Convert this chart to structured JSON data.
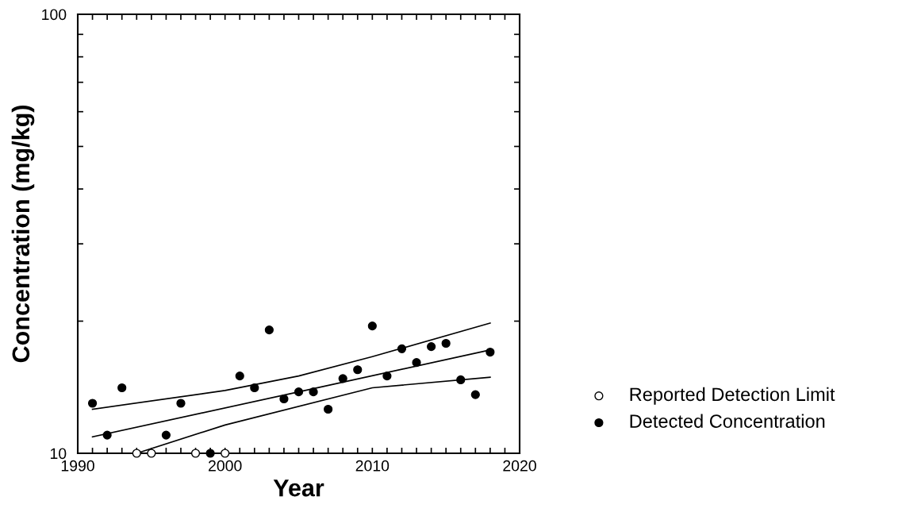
{
  "chart_data": {
    "type": "scatter",
    "xlabel": "Year",
    "ylabel": "Concentration (mg/kg)",
    "log": "y",
    "grid": false,
    "legend": "right",
    "xlim": [
      1990,
      2020
    ],
    "ylim": [
      10,
      100
    ],
    "xticks": [
      1990,
      {
        "value": 1991,
        "label": null
      },
      {
        "value": 1992,
        "label": null
      },
      {
        "value": 1993,
        "label": null
      },
      {
        "value": 1994,
        "label": null
      },
      {
        "value": 1995,
        "label": null
      },
      {
        "value": 1996,
        "label": null
      },
      {
        "value": 1997,
        "label": null
      },
      {
        "value": 1998,
        "label": null
      },
      {
        "value": 1999,
        "label": null
      },
      2000,
      {
        "value": 2001,
        "label": null
      },
      {
        "value": 2002,
        "label": null
      },
      {
        "value": 2003,
        "label": null
      },
      {
        "value": 2004,
        "label": null
      },
      {
        "value": 2005,
        "label": null
      },
      {
        "value": 2006,
        "label": null
      },
      {
        "value": 2007,
        "label": null
      },
      {
        "value": 2008,
        "label": null
      },
      {
        "value": 2009,
        "label": null
      },
      2010,
      {
        "value": 2011,
        "label": null
      },
      {
        "value": 2012,
        "label": null
      },
      {
        "value": 2013,
        "label": null
      },
      {
        "value": 2014,
        "label": null
      },
      {
        "value": 2015,
        "label": null
      },
      {
        "value": 2016,
        "label": null
      },
      {
        "value": 2017,
        "label": null
      },
      {
        "value": 2018,
        "label": null
      },
      {
        "value": 2019,
        "label": null
      },
      2020
    ],
    "yticks": [
      10,
      {
        "value": 20,
        "label": null
      },
      {
        "value": 30,
        "label": null
      },
      {
        "value": 40,
        "label": null
      },
      {
        "value": 50,
        "label": null
      },
      {
        "value": 60,
        "label": null
      },
      {
        "value": 70,
        "label": null
      },
      {
        "value": 80,
        "label": null
      },
      {
        "value": 90,
        "label": null
      },
      100
    ],
    "series": [
      {
        "name": "Reported Detection Limit",
        "marker": "circle",
        "color": "#ffffff",
        "x": [
          1994,
          1995,
          1998,
          2000
        ],
        "values": [
          10,
          10,
          10,
          10
        ]
      },
      {
        "name": "Detected Concentration",
        "marker": "circle",
        "color": "#000000",
        "x": [
          1991,
          1992,
          1993,
          1996,
          1997,
          1999,
          2001,
          2002,
          2003,
          2004,
          2005,
          2006,
          2007,
          2008,
          2009,
          2010,
          2011,
          2012,
          2013,
          2014,
          2015,
          2016,
          2017,
          2018
        ],
        "values": [
          13.0,
          11.0,
          14.1,
          11.0,
          13.0,
          10.0,
          15.0,
          14.1,
          19.1,
          13.3,
          13.8,
          13.8,
          12.6,
          14.8,
          15.5,
          19.5,
          15.0,
          17.3,
          16.1,
          17.5,
          17.8,
          14.7,
          13.6,
          17.0
        ]
      },
      {
        "type": "line",
        "marker": "none",
        "color": "#000000",
        "x": [
          1991,
          2005,
          2018
        ],
        "values": [
          10.9,
          13.8,
          17.2
        ]
      },
      {
        "type": "line",
        "marker": "none",
        "color": "#000000",
        "x": [
          1991,
          2000,
          2005,
          2010,
          2018
        ],
        "values": [
          12.6,
          13.9,
          15.0,
          16.6,
          19.8
        ]
      },
      {
        "type": "line",
        "marker": "none",
        "color": "#000000",
        "x": [
          1994,
          2000,
          2010,
          2018
        ],
        "values": [
          10.0,
          11.6,
          14.1,
          14.9
        ]
      }
    ]
  }
}
